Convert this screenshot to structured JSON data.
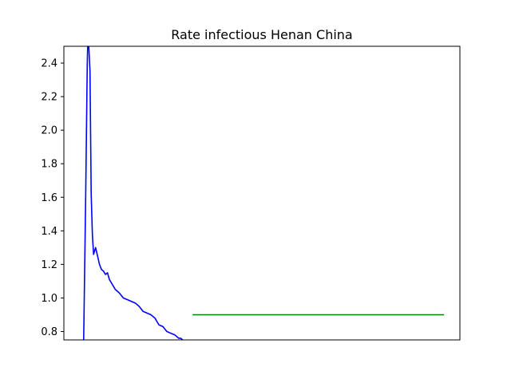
{
  "chart_data": {
    "type": "line",
    "title": "Rate infectious Henan China",
    "xlabel": "",
    "ylabel": "",
    "ylim": [
      0.75,
      2.5
    ],
    "yticks": [
      0.8,
      1.0,
      1.2,
      1.4,
      1.6,
      1.8,
      2.0,
      2.2,
      2.4
    ],
    "ytick_labels": [
      "0.8",
      "1.0",
      "1.2",
      "1.4",
      "1.6",
      "1.8",
      "2.0",
      "2.2",
      "2.4"
    ],
    "xlim": [
      0,
      100
    ],
    "grid": false,
    "series": [
      {
        "color": "#0000ff",
        "x": [
          5,
          5.5,
          5.9,
          6.0,
          6.3,
          6.6,
          6.9,
          7.2,
          7.5,
          8.0,
          8.5,
          9.0,
          9.5,
          10.0,
          10.5,
          11.0,
          11.5,
          12.0,
          12.5,
          13.0,
          13.5,
          14.0,
          15.0,
          16.0,
          17.0,
          18.0,
          19.0,
          20.0,
          21.0,
          22.0,
          23.0,
          24.0,
          25.0,
          26.0,
          27.0,
          28.0,
          29.0,
          29.5,
          30.0
        ],
        "values": [
          0.75,
          1.6,
          2.4,
          2.5,
          2.5,
          2.35,
          1.62,
          1.38,
          1.26,
          1.3,
          1.25,
          1.2,
          1.17,
          1.16,
          1.14,
          1.15,
          1.11,
          1.09,
          1.07,
          1.05,
          1.04,
          1.03,
          1.0,
          0.99,
          0.98,
          0.97,
          0.95,
          0.92,
          0.91,
          0.9,
          0.88,
          0.84,
          0.83,
          0.8,
          0.79,
          0.78,
          0.76,
          0.76,
          0.75
        ]
      },
      {
        "color": "#008000",
        "x": [
          32.5,
          96
        ],
        "values": [
          0.9,
          0.9
        ]
      }
    ]
  }
}
